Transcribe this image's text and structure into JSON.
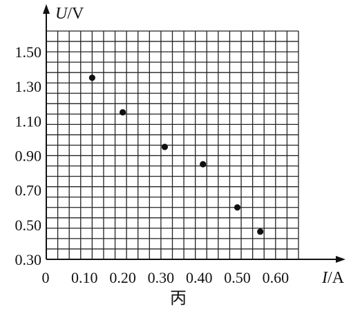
{
  "chart_data": {
    "type": "scatter",
    "title": "",
    "xlabel_var": "I",
    "xlabel_unit": "/A",
    "ylabel_var": "U",
    "ylabel_unit": "/V",
    "origin_label": "0",
    "caption": "丙",
    "xlim": [
      0,
      0.66
    ],
    "ylim": [
      0.3,
      1.62
    ],
    "x_ticks": [
      0.1,
      0.2,
      0.3,
      0.4,
      0.5,
      0.6
    ],
    "x_tick_labels": [
      "0.10",
      "0.20",
      "0.30",
      "0.40",
      "0.50",
      "0.60"
    ],
    "y_ticks": [
      0.3,
      0.5,
      0.7,
      0.9,
      1.1,
      1.3,
      1.5
    ],
    "y_tick_labels": [
      "0.30",
      "0.50",
      "0.70",
      "0.90",
      "1.10",
      "1.30",
      "1.50"
    ],
    "grid_minor_step_x": 0.03,
    "grid_minor_step_y": 0.06,
    "grid": true,
    "legend": "none",
    "points": [
      {
        "x": 0.12,
        "y": 1.35
      },
      {
        "x": 0.2,
        "y": 1.15
      },
      {
        "x": 0.31,
        "y": 0.95
      },
      {
        "x": 0.41,
        "y": 0.85
      },
      {
        "x": 0.5,
        "y": 0.6
      },
      {
        "x": 0.56,
        "y": 0.46
      }
    ],
    "colors": {
      "grid": "#222222",
      "axis": "#111111",
      "point": "#111111"
    }
  }
}
